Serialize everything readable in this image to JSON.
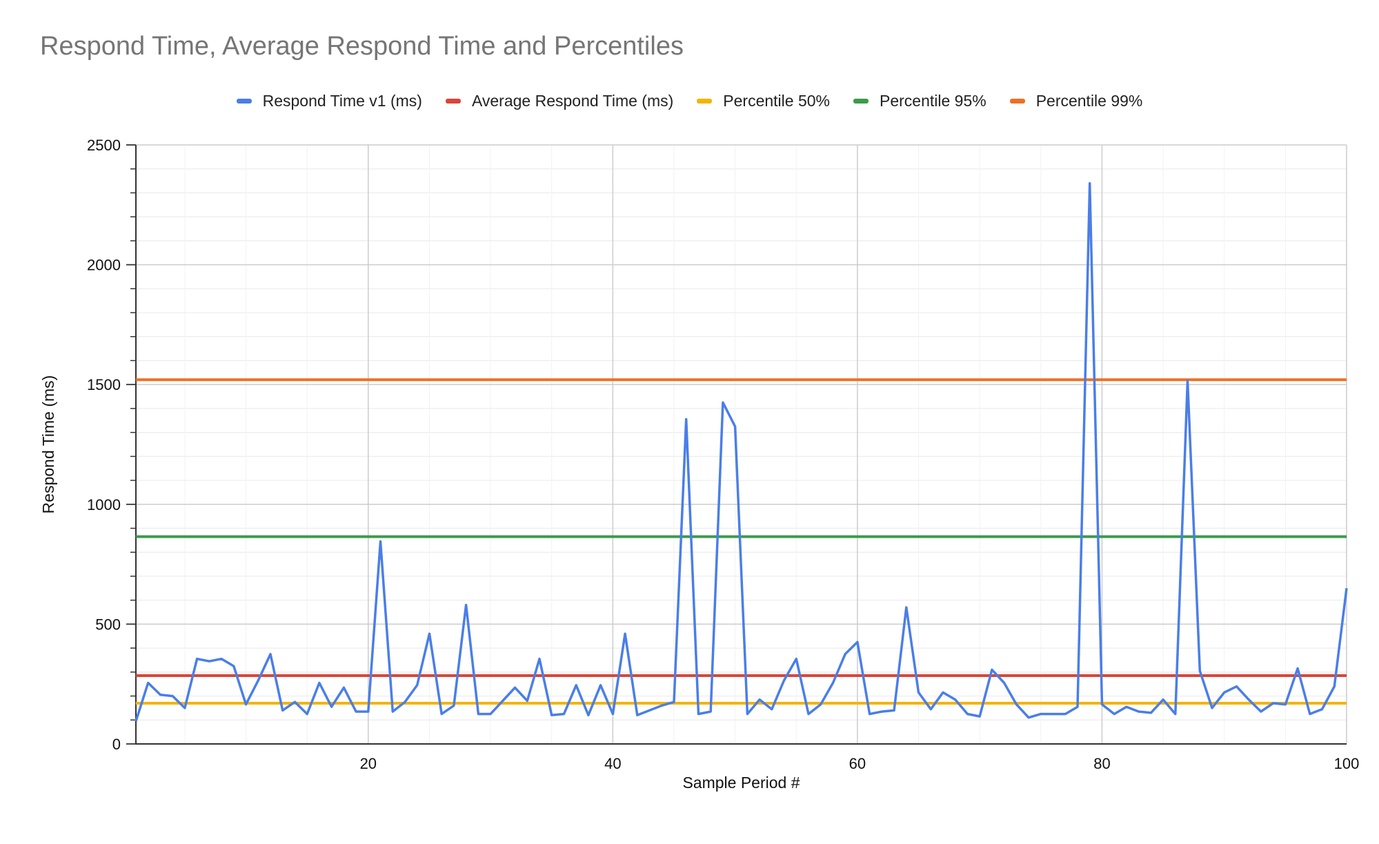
{
  "chart_data": {
    "type": "line",
    "title": "Respond Time, Average Respond Time and Percentiles",
    "xlabel": "Sample Period #",
    "ylabel": "Respond Time (ms)",
    "xlim": [
      1,
      100
    ],
    "ylim": [
      0,
      2500
    ],
    "x_ticks": [
      20,
      40,
      60,
      80,
      100
    ],
    "y_ticks": [
      0,
      500,
      1000,
      1500,
      2000,
      2500
    ],
    "x_tick_labels": [
      "20",
      "40",
      "60",
      "80",
      "100"
    ],
    "y_tick_labels": [
      "0",
      "500",
      "1000",
      "1500",
      "2000",
      "2500"
    ],
    "grid": true,
    "legend_position": "top",
    "series": [
      {
        "name": "Respond Time v1 (ms)",
        "color": "#4a7ee8",
        "kind": "line",
        "values": [
          95,
          255,
          205,
          200,
          150,
          355,
          345,
          355,
          325,
          165,
          265,
          375,
          140,
          175,
          125,
          255,
          155,
          235,
          135,
          135,
          845,
          135,
          175,
          245,
          460,
          125,
          160,
          580,
          125,
          125,
          180,
          235,
          180,
          355,
          120,
          125,
          245,
          120,
          245,
          125,
          460,
          120,
          140,
          160,
          175,
          1355,
          125,
          135,
          1425,
          1325,
          125,
          185,
          145,
          265,
          355,
          125,
          165,
          255,
          375,
          425,
          125,
          135,
          140,
          570,
          215,
          145,
          215,
          185,
          125,
          115,
          310,
          255,
          165,
          110,
          125,
          125,
          125,
          155,
          2340,
          165,
          125,
          155,
          135,
          130,
          185,
          125,
          1515,
          305,
          150,
          215,
          240,
          185,
          135,
          170,
          165,
          315,
          125,
          145,
          240,
          650
        ]
      },
      {
        "name": "Average Respond Time (ms)",
        "color": "#db4437",
        "kind": "constant",
        "value": 285
      },
      {
        "name": "Percentile 50%",
        "color": "#f4b400",
        "kind": "constant",
        "value": 170
      },
      {
        "name": "Percentile 95%",
        "color": "#3c9a4a",
        "kind": "constant",
        "value": 865
      },
      {
        "name": "Percentile 99%",
        "color": "#ec7024",
        "kind": "constant",
        "value": 1520
      }
    ]
  }
}
